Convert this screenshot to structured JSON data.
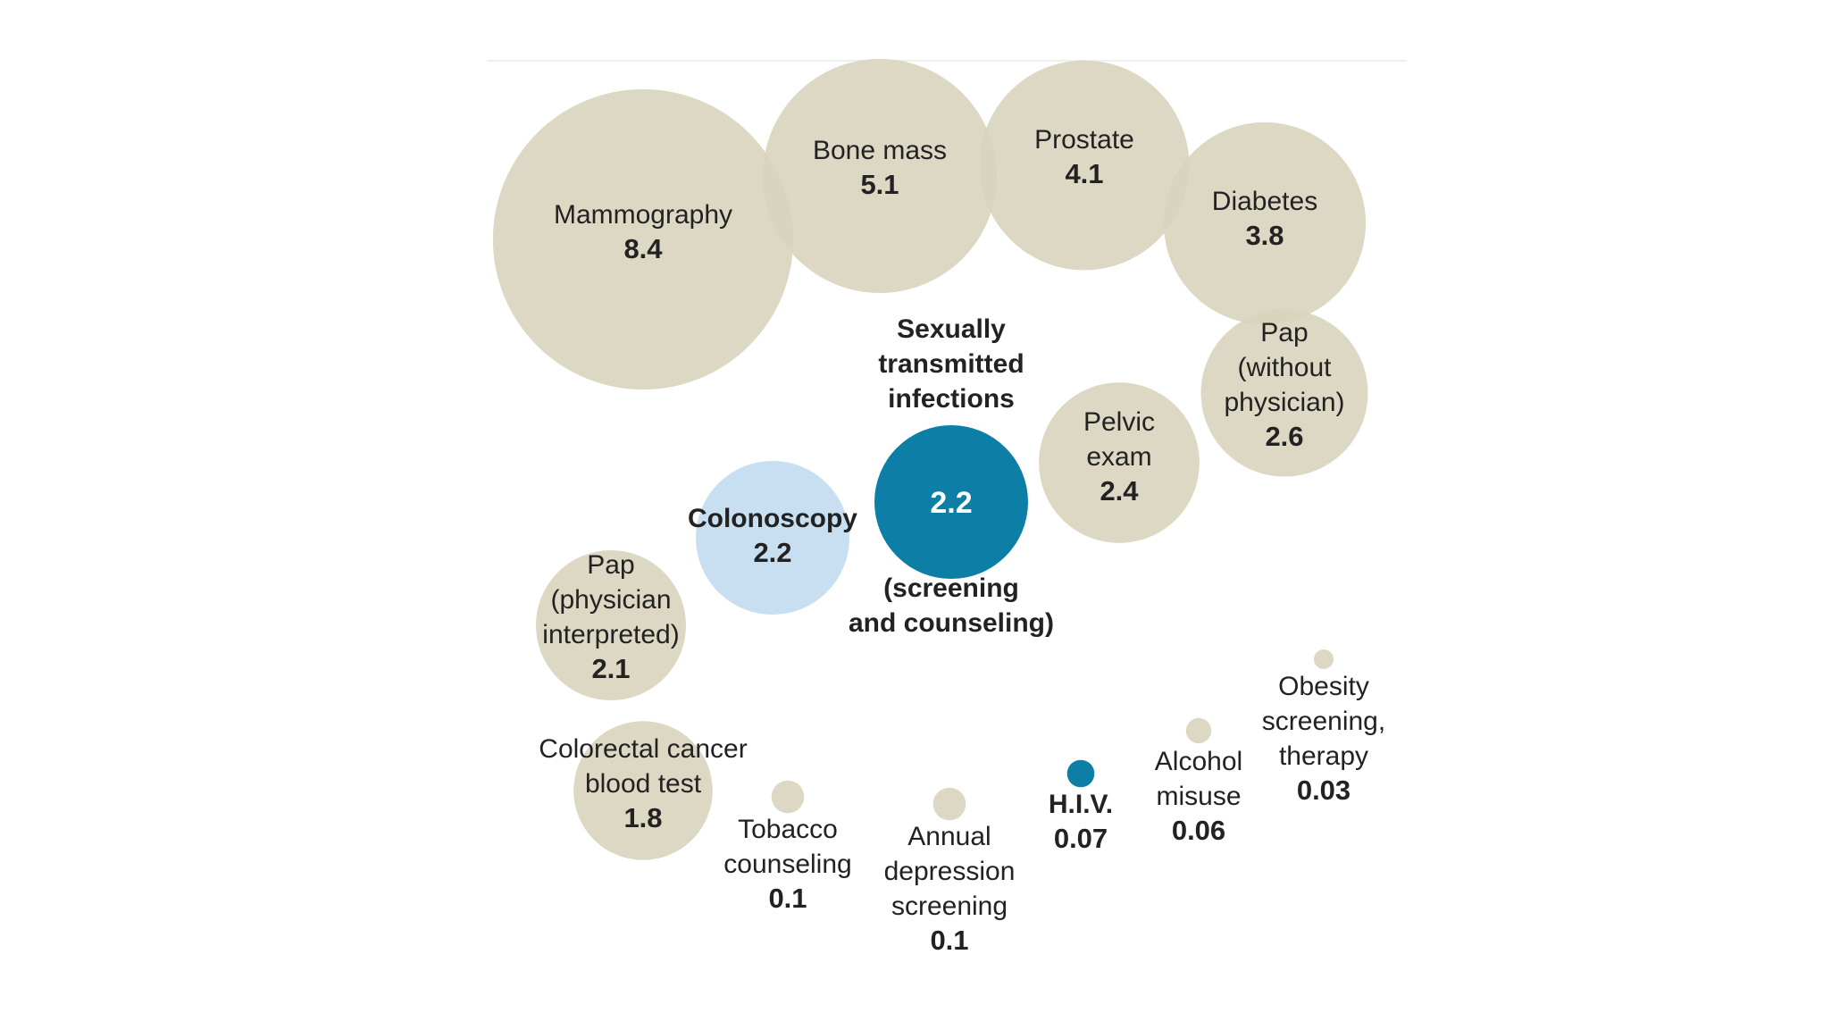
{
  "chart_data": {
    "type": "bubble",
    "colors": {
      "default": "#d8d4bd",
      "highlight": "#0d7fa6",
      "light": "#c7dff0",
      "background_line": "#efefef"
    },
    "items": [
      {
        "key": "mammography",
        "label": [
          "Mammography"
        ],
        "value": 8.4,
        "value_text": "8.4",
        "color": "default"
      },
      {
        "key": "bone_mass",
        "label": [
          "Bone mass"
        ],
        "value": 5.1,
        "value_text": "5.1",
        "color": "default"
      },
      {
        "key": "prostate",
        "label": [
          "Prostate"
        ],
        "value": 4.1,
        "value_text": "4.1",
        "color": "default"
      },
      {
        "key": "diabetes",
        "label": [
          "Diabetes"
        ],
        "value": 3.8,
        "value_text": "3.8",
        "color": "default"
      },
      {
        "key": "pap_without",
        "label": [
          "Pap",
          "(without",
          "physician)"
        ],
        "value": 2.6,
        "value_text": "2.6",
        "color": "default"
      },
      {
        "key": "pelvic",
        "label": [
          "Pelvic",
          "exam"
        ],
        "value": 2.4,
        "value_text": "2.4",
        "color": "default"
      },
      {
        "key": "sti",
        "label_above": [
          "Sexually",
          "transmitted",
          "infections"
        ],
        "label_below": [
          "(screening",
          "and counseling)"
        ],
        "value": 2.2,
        "value_text": "2.2",
        "color": "highlight"
      },
      {
        "key": "colonoscopy",
        "label": [
          "Colonoscopy"
        ],
        "value": 2.2,
        "value_text": "2.2",
        "color": "light"
      },
      {
        "key": "pap_physician",
        "label": [
          "Pap",
          "(physician",
          "interpreted)"
        ],
        "value": 2.1,
        "value_text": "2.1",
        "color": "default"
      },
      {
        "key": "colorectal",
        "label": [
          "Colorectal cancer",
          "blood test"
        ],
        "value": 1.8,
        "value_text": "1.8",
        "color": "default"
      },
      {
        "key": "tobacco",
        "label": [
          "Tobacco",
          "counseling"
        ],
        "value": 0.1,
        "value_text": "0.1",
        "color": "default"
      },
      {
        "key": "depression",
        "label": [
          "Annual",
          "depression",
          "screening"
        ],
        "value": 0.1,
        "value_text": "0.1",
        "color": "default"
      },
      {
        "key": "hiv",
        "label": [
          "H.I.V."
        ],
        "value": 0.07,
        "value_text": "0.07",
        "color": "highlight"
      },
      {
        "key": "alcohol",
        "label": [
          "Alcohol",
          "misuse"
        ],
        "value": 0.06,
        "value_text": "0.06",
        "color": "default"
      },
      {
        "key": "obesity",
        "label": [
          "Obesity",
          "screening,",
          "therapy"
        ],
        "value": 0.03,
        "value_text": "0.03",
        "color": "default"
      }
    ]
  }
}
